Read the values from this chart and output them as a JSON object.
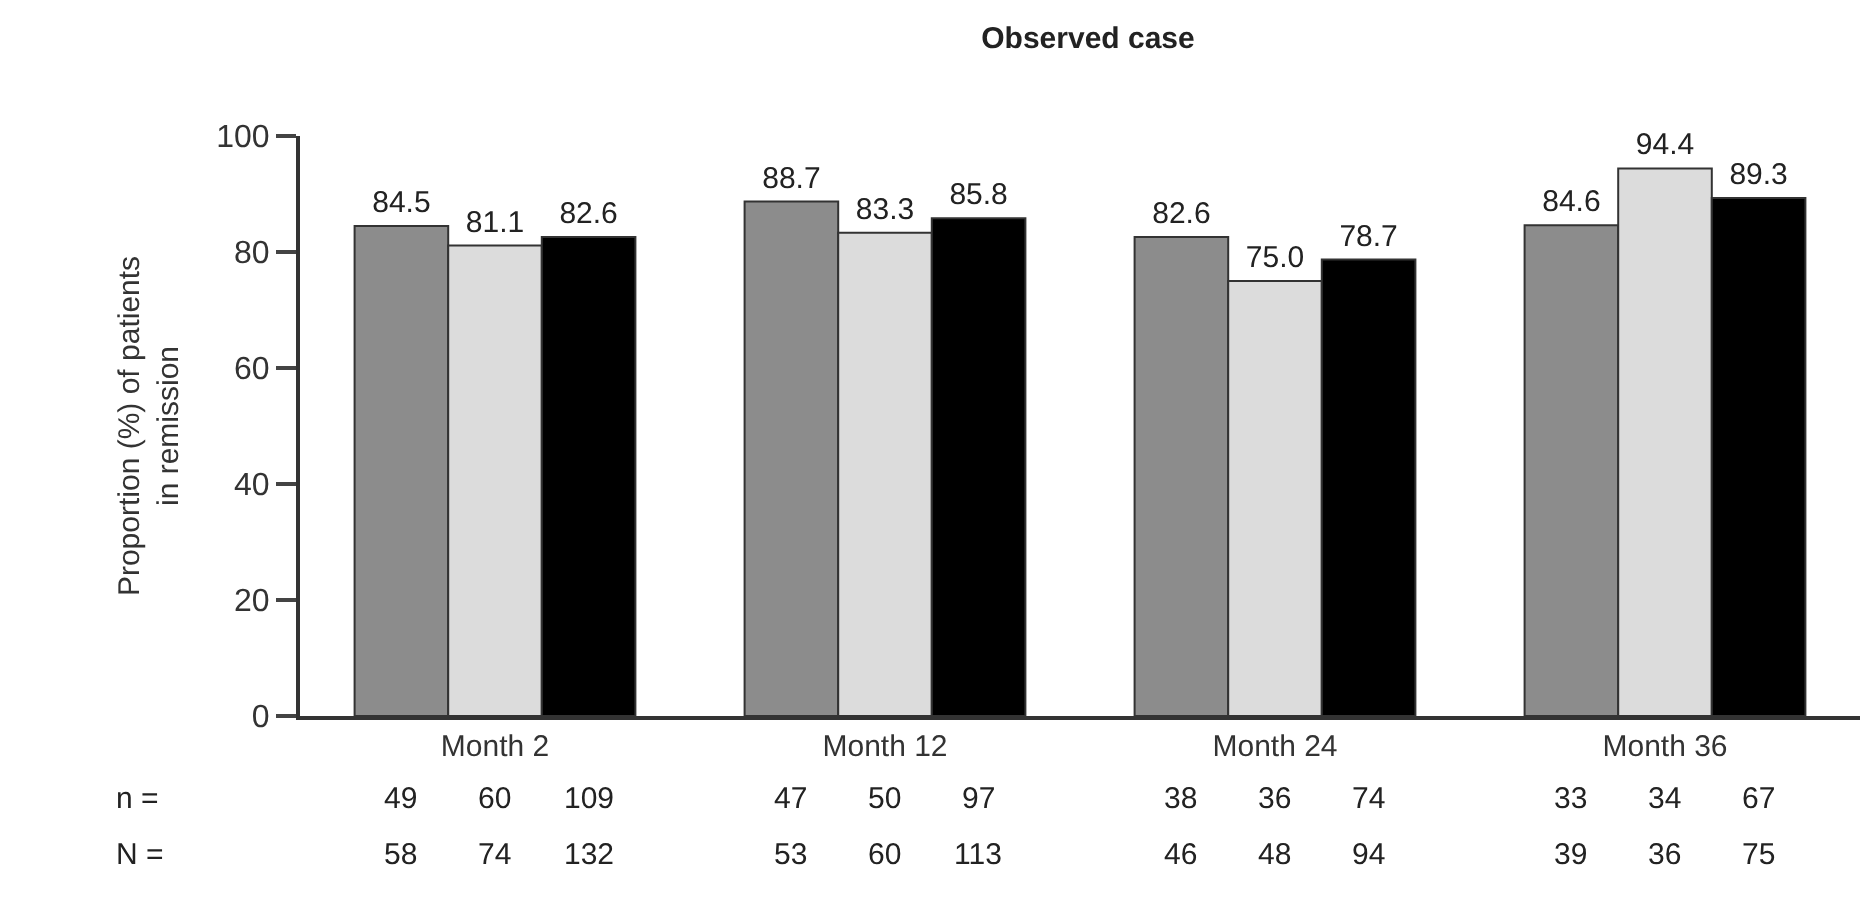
{
  "chart_data": {
    "type": "bar",
    "title": "Observed case",
    "ylabel": "Proportion (%) of patients\nin remission",
    "categories": [
      "Month 2",
      "Month 12",
      "Month 24",
      "Month 36"
    ],
    "series": [
      {
        "color": "#8c8c8c",
        "values": [
          84.5,
          88.7,
          82.6,
          84.6
        ]
      },
      {
        "color": "#dcdcdc",
        "values": [
          81.1,
          83.3,
          75.0,
          94.4
        ]
      },
      {
        "color": "#000000",
        "values": [
          82.6,
          85.8,
          78.7,
          89.3
        ]
      }
    ],
    "value_labels": [
      [
        "84.5",
        "88.7",
        "82.6",
        "84.6"
      ],
      [
        "81.1",
        "83.3",
        "75.0",
        "94.4"
      ],
      [
        "82.6",
        "85.8",
        "78.7",
        "89.3"
      ]
    ],
    "ylim": [
      0,
      100
    ],
    "yticks": [
      0,
      20,
      40,
      60,
      80,
      100
    ],
    "annotations": [
      "n =",
      "49",
      "60",
      "109",
      "47",
      "50",
      "97",
      "38",
      "36",
      "74",
      "33",
      "34",
      "67",
      "N =",
      "58",
      "74",
      "132",
      "53",
      "60",
      "113",
      "46",
      "48",
      "94",
      "39",
      "36",
      "75"
    ]
  }
}
